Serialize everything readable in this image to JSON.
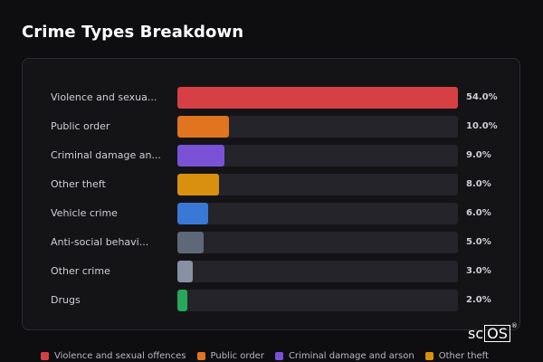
{
  "title": "Crime Types Breakdown",
  "brand": {
    "text_a": "sc",
    "text_b": "OS",
    "mark": "®"
  },
  "chart_data": {
    "type": "bar",
    "orientation": "horizontal",
    "title": "Crime Types Breakdown",
    "categories": [
      "Violence and sexua...",
      "Public order",
      "Criminal damage an...",
      "Other theft",
      "Vehicle crime",
      "Anti-social behavi...",
      "Other crime",
      "Drugs"
    ],
    "values": [
      54.0,
      10.0,
      9.0,
      8.0,
      6.0,
      5.0,
      3.0,
      2.0
    ],
    "value_labels": [
      "54.0%",
      "10.0%",
      "9.0%",
      "8.0%",
      "6.0%",
      "5.0%",
      "3.0%",
      "2.0%"
    ],
    "colors": [
      "#d64045",
      "#e0741f",
      "#7b52d6",
      "#d9900f",
      "#3a78d6",
      "#5e6878",
      "#8891a3",
      "#27a85a"
    ],
    "xlim": [
      0,
      54
    ],
    "legend_position": "bottom",
    "legend": [
      {
        "label": "Violence and sexual offences",
        "color": "#d64045"
      },
      {
        "label": "Public order",
        "color": "#e0741f"
      },
      {
        "label": "Criminal damage and arson",
        "color": "#7b52d6"
      },
      {
        "label": "Other theft",
        "color": "#d9900f"
      }
    ]
  }
}
